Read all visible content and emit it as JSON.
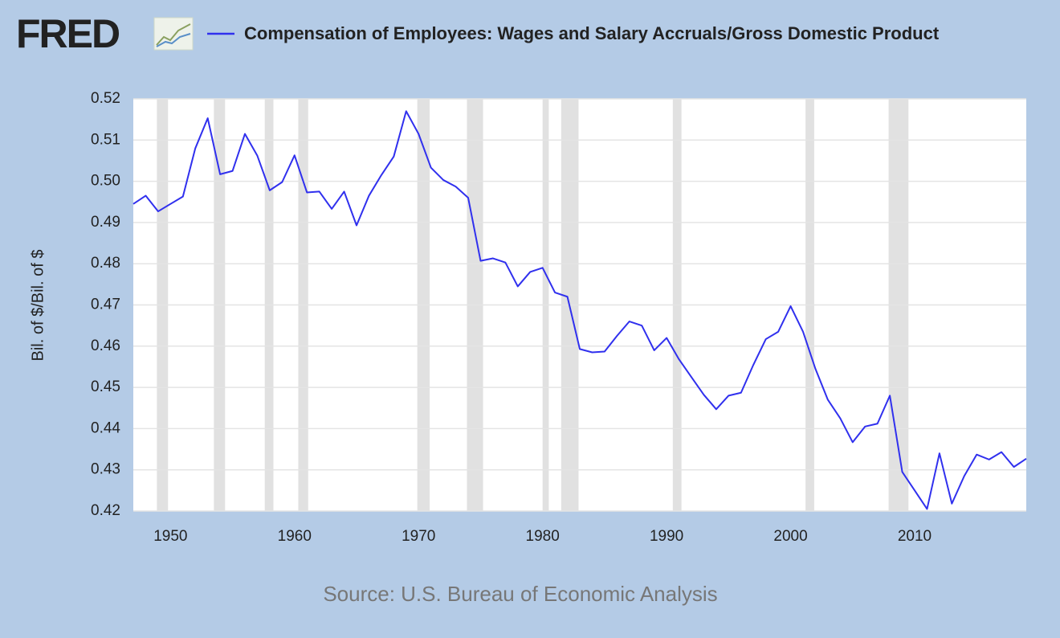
{
  "logo": "FRED",
  "chart_data": {
    "type": "line",
    "title": "Compensation of Employees: Wages and Salary Accruals/Gross Domestic Product",
    "y_label": "Bil. of $/Bil. of $",
    "source": "Source: U.S. Bureau of Economic Analysis",
    "x": [
      1947,
      1948,
      1949,
      1950,
      1951,
      1952,
      1953,
      1954,
      1955,
      1956,
      1957,
      1958,
      1959,
      1960,
      1961,
      1962,
      1963,
      1964,
      1965,
      1966,
      1967,
      1968,
      1969,
      1970,
      1971,
      1972,
      1973,
      1974,
      1975,
      1976,
      1977,
      1978,
      1979,
      1980,
      1981,
      1982,
      1983,
      1984,
      1985,
      1986,
      1987,
      1988,
      1989,
      1990,
      1991,
      1992,
      1993,
      1994,
      1995,
      1996,
      1997,
      1998,
      1999,
      2000,
      2001,
      2002,
      2003,
      2004,
      2005,
      2006,
      2007,
      2008,
      2009,
      2010,
      2011,
      2012,
      2013,
      2014,
      2015,
      2016,
      2017,
      2018,
      2019
    ],
    "series": [
      {
        "name": "Compensation of Employees: Wages and Salary Accruals/Gross Domestic Product",
        "color": "#3030ee",
        "values": [
          0.4945,
          0.4965,
          0.4927,
          0.4945,
          0.4963,
          0.508,
          0.5153,
          0.5017,
          0.5025,
          0.5115,
          0.5062,
          0.4978,
          0.4998,
          0.5063,
          0.4973,
          0.4975,
          0.4933,
          0.4975,
          0.4893,
          0.4965,
          0.5015,
          0.506,
          0.517,
          0.5115,
          0.5033,
          0.5003,
          0.4987,
          0.496,
          0.4807,
          0.4813,
          0.4803,
          0.4745,
          0.478,
          0.479,
          0.473,
          0.472,
          0.4593,
          0.4585,
          0.4587,
          0.4625,
          0.466,
          0.465,
          0.459,
          0.462,
          0.4568,
          0.4525,
          0.4482,
          0.4447,
          0.448,
          0.4487,
          0.4555,
          0.4617,
          0.4635,
          0.4697,
          0.4635,
          0.4545,
          0.447,
          0.4425,
          0.4367,
          0.4405,
          0.4412,
          0.448,
          0.4295,
          0.425,
          0.4205,
          0.434,
          0.4218,
          0.4285,
          0.4337,
          0.4325,
          0.4343,
          0.4307,
          0.4327
        ]
      }
    ],
    "recessions": [
      [
        1948.9,
        1949.8
      ],
      [
        1953.5,
        1954.4
      ],
      [
        1957.6,
        1958.3
      ],
      [
        1960.3,
        1961.1
      ],
      [
        1969.9,
        1970.9
      ],
      [
        1973.9,
        1975.2
      ],
      [
        1980.0,
        1980.5
      ],
      [
        1981.5,
        1982.9
      ],
      [
        1990.5,
        1991.2
      ],
      [
        2001.2,
        2001.9
      ],
      [
        2007.9,
        2009.5
      ]
    ],
    "recession_color": "#e1e1e1",
    "xlim": [
      1947,
      2019
    ],
    "xticks": [
      1950,
      1960,
      1970,
      1980,
      1990,
      2000,
      2010
    ],
    "ylim": [
      0.42,
      0.52
    ],
    "yticks": [
      0.42,
      0.43,
      0.44,
      0.45,
      0.46,
      0.47,
      0.48,
      0.49,
      {
        "value": 0.5,
        "label": "0.50"
      },
      0.51,
      0.52
    ],
    "grid": true
  }
}
